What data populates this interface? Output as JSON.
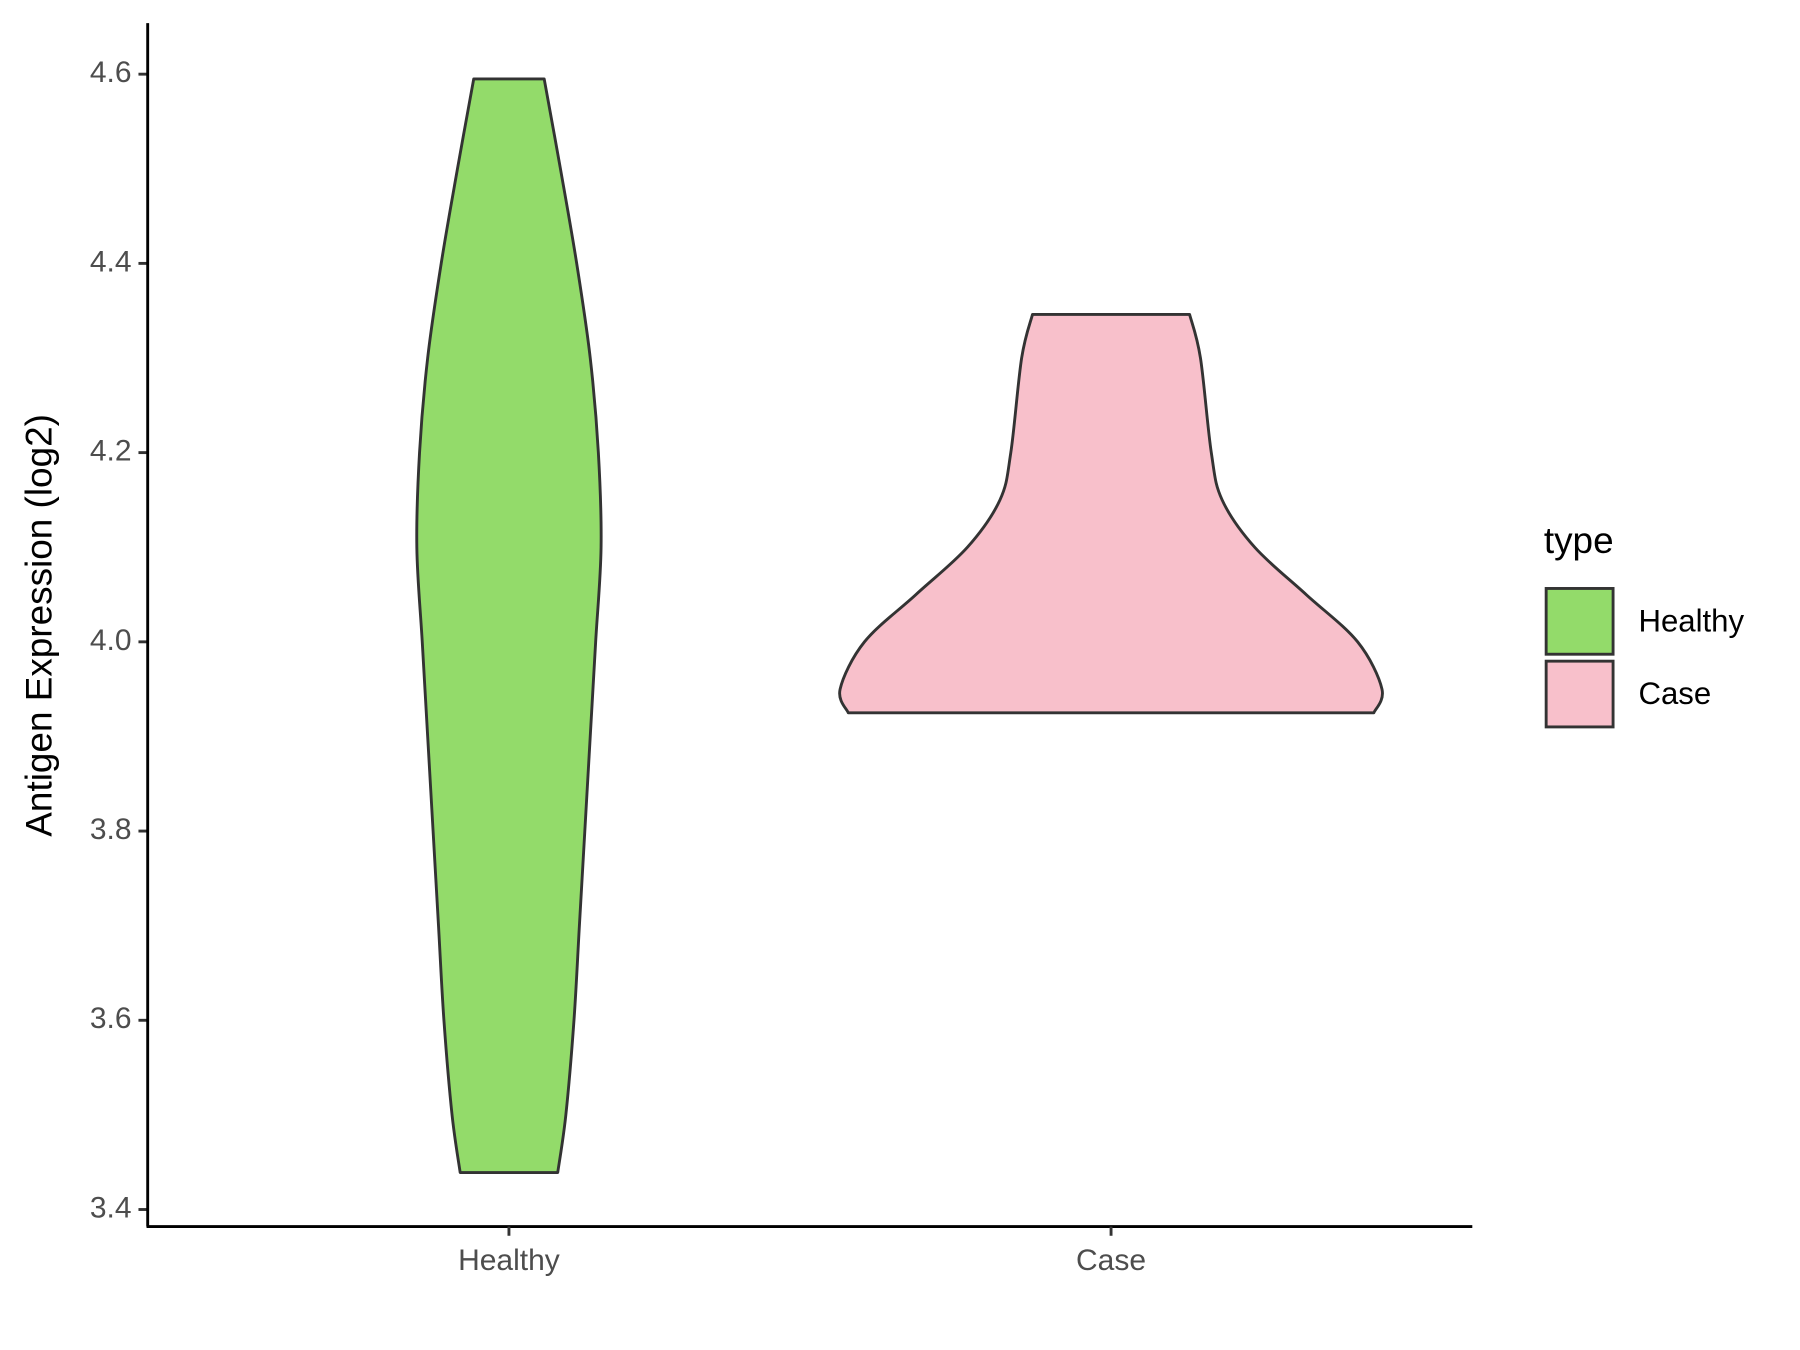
{
  "chart_data": {
    "type": "violin",
    "y_label": "Antigen Expression (log2)",
    "categories": [
      "Healthy",
      "Case"
    ],
    "legend_title": "type",
    "series": [
      {
        "name": "Healthy",
        "color": "#93db6a",
        "y": [
          4.595,
          4.5,
          4.4,
          4.3,
          4.2,
          4.1,
          4.0,
          3.9,
          3.8,
          3.7,
          3.6,
          3.5,
          3.439
        ],
        "density": [
          0.13,
          0.19,
          0.25,
          0.3,
          0.33,
          0.34,
          0.32,
          0.3,
          0.28,
          0.26,
          0.24,
          0.21,
          0.18
        ]
      },
      {
        "name": "Case",
        "color": "#f8c0cb",
        "y": [
          4.346,
          4.3,
          4.2,
          4.15,
          4.1,
          4.05,
          4.0,
          3.95,
          3.925
        ],
        "density": [
          0.29,
          0.33,
          0.37,
          0.41,
          0.53,
          0.72,
          0.91,
          1.0,
          0.97
        ]
      }
    ],
    "ylim": [
      3.382,
      4.654
    ],
    "yticks": [
      3.4,
      3.6,
      3.8,
      {
        "value": 4,
        "label": "4.0"
      },
      4.2,
      4.4,
      4.6
    ],
    "outline_color": "#333333",
    "legend": "right"
  }
}
